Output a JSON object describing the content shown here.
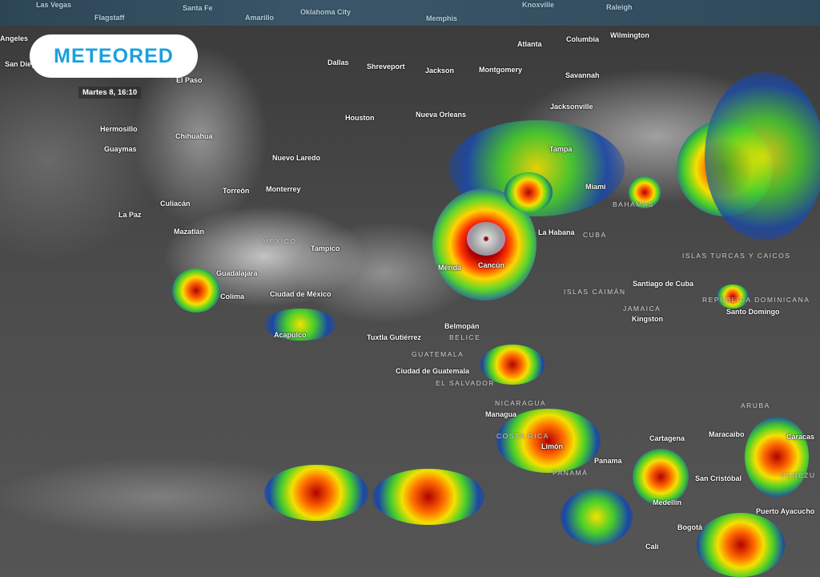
{
  "brand": {
    "logo_text": "METEORED",
    "accent": "#1aa0e0"
  },
  "timestamp": "Martes 8, 16:10",
  "top_cities": [
    "Las Vegas",
    "Santa Fe",
    "Flagstaff",
    "Amarillo",
    "Oklahoma City",
    "Memphis",
    "Knoxville",
    "Raleigh"
  ],
  "cities": [
    "Angeles",
    "San Diego",
    "El Paso",
    "Dallas",
    "Shreveport",
    "Jackson",
    "Montgomery",
    "Atlanta",
    "Columbia",
    "Wilmington",
    "Savannah",
    "Jacksonville",
    "Houston",
    "Nueva Orleans",
    "Hermosillo",
    "Chihuahua",
    "Guaymas",
    "Nuevo Laredo",
    "Tampa",
    "Miami",
    "Torreón",
    "Monterrey",
    "Culiacán",
    "La Paz",
    "Mazatlán",
    "Tampico",
    "Guadalajara",
    "Colima",
    "Ciudad de México",
    "Acapulco",
    "Tuxtla Gutiérrez",
    "Mérida",
    "Cancún",
    "La Habana",
    "Santiago de Cuba",
    "Kingston",
    "Santo Domingo",
    "Belmopán",
    "Ciudad de Guatemala",
    "Managua",
    "Limón",
    "Panama",
    "Cartagena",
    "Maracaibo",
    "Caracas",
    "San Cristóbal",
    "Medellín",
    "Bogotá",
    "Cali",
    "Puerto Ayacucho"
  ],
  "countries": [
    "MÉXICO",
    "GUATEMALA",
    "BELICE",
    "EL SALVADOR",
    "NICARAGUA",
    "COSTA RICA",
    "PANAMÁ",
    "CUBA",
    "BAHAMAS",
    "ISLAS CAIMÁN",
    "JAMAICA",
    "ISLAS TURCAS Y CAICOS",
    "REPÚBLICA DOMINICANA",
    "ARUBA",
    "VENEZU"
  ],
  "map_type": "infrared satellite imagery with enhanced cloud-top color scale"
}
